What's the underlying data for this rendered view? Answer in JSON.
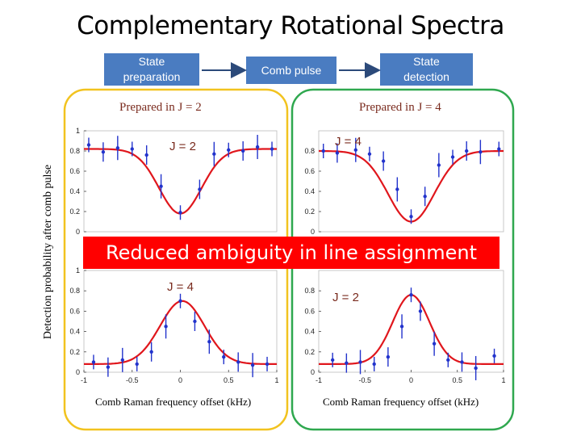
{
  "title": "Complementary Rotational Spectra",
  "flow": {
    "state_prep": [
      "State",
      "preparation"
    ],
    "comb_pulse": "Comb pulse",
    "state_detect": [
      "State",
      "detection"
    ]
  },
  "panels": {
    "left_label": "Prepared in J = 2",
    "right_label": "Prepared in J = 4",
    "ylabel": "Detection probability after comb pulse",
    "banner": "Reduced ambiguity in line assignment",
    "xlabel": "Comb Raman frequency offset (kHz)"
  },
  "colors": {
    "flow_box": "#4a7cc1",
    "left_frame": "#f2c31f",
    "right_frame": "#2fa84f",
    "fit_line": "#e0161c",
    "data_points": "#2233cc",
    "banner": "#ff0000"
  },
  "chart_data": [
    {
      "type": "scatter",
      "name": "top-left",
      "annotation": "J = 2",
      "y_ticks": [
        "1",
        "0.8",
        "0.6",
        "0.4",
        "0.2",
        "0"
      ],
      "ylim": [
        0,
        1
      ],
      "fit": {
        "shape": "dip",
        "baseline": 0.82,
        "depth": 0.64,
        "center": 0.0,
        "sigma": 0.22
      },
      "x": [
        -0.95,
        -0.8,
        -0.65,
        -0.5,
        -0.35,
        -0.2,
        0.0,
        0.2,
        0.35,
        0.5,
        0.65,
        0.8,
        0.95
      ],
      "y": [
        0.86,
        0.79,
        0.83,
        0.82,
        0.76,
        0.45,
        0.19,
        0.42,
        0.77,
        0.81,
        0.8,
        0.84,
        0.82
      ]
    },
    {
      "type": "scatter",
      "name": "top-right",
      "annotation": "J = 4",
      "y_ticks": [
        "0.8",
        "0.6",
        "0.4",
        "0.2",
        "0"
      ],
      "ylim": [
        0,
        1
      ],
      "fit": {
        "shape": "dip",
        "baseline": 0.8,
        "depth": 0.7,
        "center": 0.0,
        "sigma": 0.25
      },
      "x": [
        -0.95,
        -0.8,
        -0.6,
        -0.45,
        -0.3,
        -0.15,
        0.0,
        0.15,
        0.3,
        0.45,
        0.6,
        0.75,
        0.95
      ],
      "y": [
        0.8,
        0.78,
        0.81,
        0.77,
        0.7,
        0.42,
        0.15,
        0.35,
        0.66,
        0.74,
        0.8,
        0.79,
        0.82
      ]
    },
    {
      "type": "scatter",
      "name": "bottom-left",
      "annotation": "J = 4",
      "x_ticks": [
        "-1",
        "-0.5",
        "0",
        "0.5",
        "1"
      ],
      "y_ticks": [
        "1",
        "0.8",
        "0.6",
        "0.4",
        "0.2",
        "0"
      ],
      "xlim": [
        -1,
        1
      ],
      "ylim": [
        0,
        1
      ],
      "fit": {
        "shape": "peak",
        "baseline": 0.08,
        "height": 0.62,
        "center": 0.02,
        "sigma": 0.23
      },
      "x": [
        -0.9,
        -0.75,
        -0.6,
        -0.45,
        -0.3,
        -0.15,
        0.0,
        0.15,
        0.3,
        0.45,
        0.6,
        0.75,
        0.9
      ],
      "y": [
        0.1,
        0.05,
        0.12,
        0.08,
        0.2,
        0.45,
        0.7,
        0.5,
        0.3,
        0.15,
        0.1,
        0.07,
        0.08
      ]
    },
    {
      "type": "scatter",
      "name": "bottom-right",
      "annotation": "J = 2",
      "x_ticks": [
        "-1",
        "-0.5",
        "0",
        "0.5",
        "1"
      ],
      "y_ticks": [
        "0.8",
        "0.6",
        "0.4",
        "0.2",
        "0"
      ],
      "xlim": [
        -1,
        1
      ],
      "ylim": [
        0,
        1
      ],
      "fit": {
        "shape": "peak",
        "baseline": 0.08,
        "height": 0.68,
        "center": 0.0,
        "sigma": 0.2
      },
      "x": [
        -0.85,
        -0.7,
        -0.55,
        -0.4,
        -0.25,
        -0.1,
        0.0,
        0.1,
        0.25,
        0.4,
        0.55,
        0.7,
        0.9
      ],
      "y": [
        0.12,
        0.09,
        0.1,
        0.08,
        0.15,
        0.45,
        0.76,
        0.6,
        0.28,
        0.12,
        0.1,
        0.04,
        0.16
      ]
    }
  ]
}
